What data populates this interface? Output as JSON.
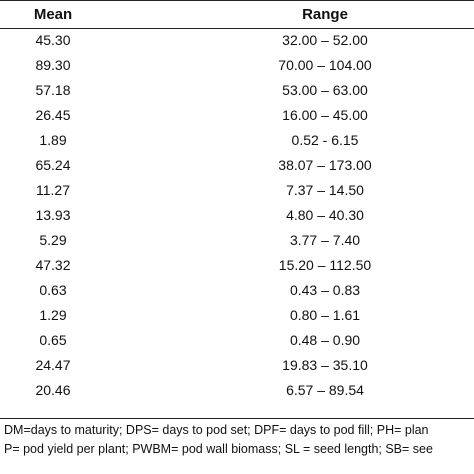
{
  "table": {
    "headers": {
      "mean": "Mean",
      "range": "Range"
    },
    "rows": [
      {
        "mean": "45.30",
        "range": "32.00 – 52.00"
      },
      {
        "mean": "89.30",
        "range": "70.00 – 104.00"
      },
      {
        "mean": "57.18",
        "range": "53.00 – 63.00"
      },
      {
        "mean": "26.45",
        "range": "16.00 – 45.00"
      },
      {
        "mean": "1.89",
        "range": "0.52 - 6.15"
      },
      {
        "mean": "65.24",
        "range": "38.07 – 173.00"
      },
      {
        "mean": "11.27",
        "range": "7.37 – 14.50"
      },
      {
        "mean": "13.93",
        "range": "4.80 – 40.30"
      },
      {
        "mean": "5.29",
        "range": "3.77 – 7.40"
      },
      {
        "mean": "47.32",
        "range": "15.20 – 112.50"
      },
      {
        "mean": "0.63",
        "range": "0.43 – 0.83"
      },
      {
        "mean": "1.29",
        "range": "0.80 – 1.61"
      },
      {
        "mean": "0.65",
        "range": "0.48 – 0.90"
      },
      {
        "mean": "24.47",
        "range": "19.83 – 35.10"
      },
      {
        "mean": "20.46",
        "range": "6.57 – 89.54"
      }
    ]
  },
  "footnote": {
    "line1": "DM=days to maturity; DPS= days to pod set; DPF= days to pod fill; PH= plan",
    "line2": "P= pod yield per plant; PWBM= pod wall biomass; SL = seed length; SB= see"
  }
}
